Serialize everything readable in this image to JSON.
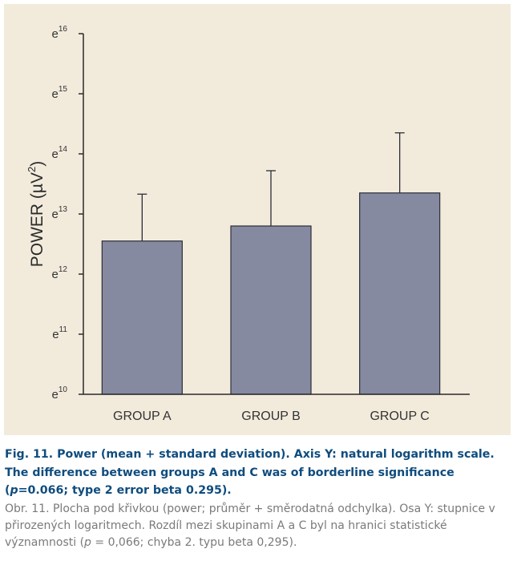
{
  "colors": {
    "panel_background": "#f2ebdc",
    "bar_fill": "#858aa1",
    "bar_stroke": "#2b2d38",
    "axis": "#2b2b2b",
    "caption_en": "#0f4c7e",
    "caption_cz": "#7a7a7a"
  },
  "chart_data": {
    "type": "bar",
    "title": "",
    "xlabel": "",
    "ylabel": "POWER (µV²)",
    "y_scale": "natural-log",
    "ylim": [
      10,
      16
    ],
    "yticks": [
      10,
      11,
      12,
      13,
      14,
      15,
      16
    ],
    "ytick_labels": [
      "e10",
      "e11",
      "e12",
      "e13",
      "e14",
      "e15",
      "e16"
    ],
    "categories": [
      "GROUP A",
      "GROUP B",
      "GROUP C"
    ],
    "values": [
      12.55,
      12.8,
      13.35
    ],
    "error_upper": [
      13.33,
      13.72,
      14.35
    ],
    "error_type": "mean + standard deviation",
    "grid": false,
    "legend": "none"
  },
  "caption": {
    "en_part1": "Fig. 11. Power (mean + standard deviation). Axis Y: natural logarithm scale. The difference between groups A and C was of borderline significance (",
    "en_p": "p",
    "en_part2": "=0.066; type 2 error beta 0.295).",
    "cz_part1": "Obr. 11. Plocha pod křivkou (power; průměr + směrodatná odchylka). Osa Y: stupnice v přirozených logaritmech. Rozdíl mezi skupinami A a C byl na hranici statistické významnosti (",
    "cz_p": "p",
    "cz_part2": " = 0,066; chyba 2. typu beta 0,295)."
  }
}
